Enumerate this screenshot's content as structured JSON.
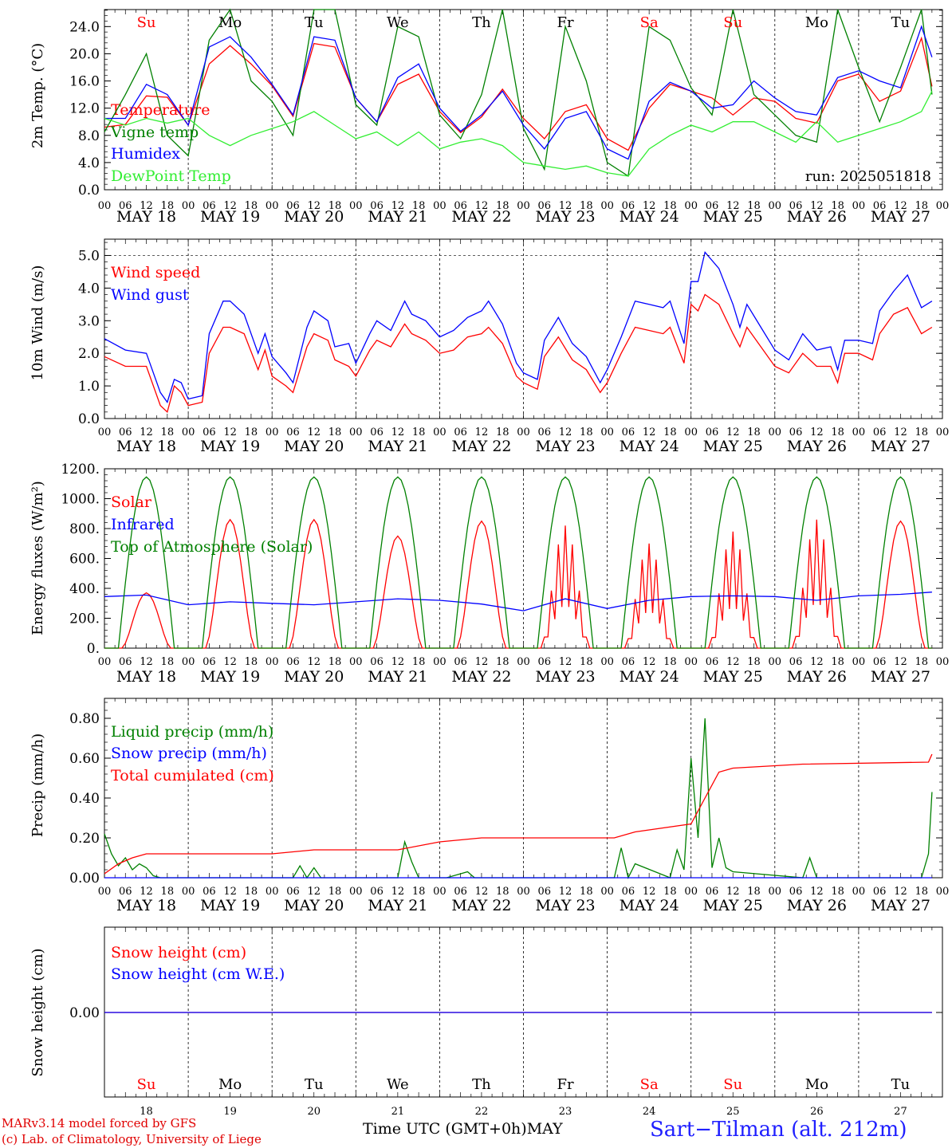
{
  "chart_data": [
    {
      "type": "line",
      "ylabel": "2m Temp. (°C)",
      "ylim": [
        0,
        26.5
      ],
      "yticks": [
        "0.0",
        "4.0",
        "8.0",
        "12.0",
        "16.0",
        "20.0",
        "24.0"
      ],
      "x_unit": "hours since May 18 00 UTC",
      "annotation": "run: 2025051818",
      "series": [
        {
          "name": "Temperature",
          "color": "#ff0000",
          "x": [
            0,
            6,
            12,
            18,
            24,
            30,
            36,
            42,
            48,
            54,
            60,
            66,
            72,
            78,
            84,
            90,
            96,
            102,
            108,
            114,
            120,
            126,
            132,
            138,
            144,
            150,
            156,
            162,
            168,
            174,
            180,
            186,
            192,
            198,
            204,
            210,
            216,
            222,
            228,
            234,
            237
          ],
          "y": [
            9.2,
            9.6,
            13.8,
            13.6,
            9.5,
            18.5,
            21.2,
            18.5,
            15.3,
            10.8,
            21.5,
            21,
            13.5,
            10,
            15.5,
            17,
            11.5,
            8.4,
            10.7,
            14.8,
            10.5,
            7.5,
            11.5,
            12.5,
            7.5,
            5.8,
            12,
            15.5,
            14.5,
            13.5,
            11,
            13.5,
            13,
            10.5,
            9.8,
            16,
            17,
            13,
            14.5,
            22.3,
            15.2
          ]
        },
        {
          "name": "Vigne temp",
          "color": "#008000",
          "x": [
            0,
            6,
            12,
            18,
            24,
            30,
            36,
            42,
            48,
            54,
            60,
            66,
            72,
            78,
            84,
            90,
            96,
            102,
            108,
            114,
            120,
            126,
            132,
            138,
            144,
            150,
            156,
            162,
            168,
            174,
            180,
            186,
            192,
            198,
            204,
            210,
            216,
            222,
            228,
            234,
            237
          ],
          "y": [
            8.5,
            14,
            20,
            8,
            5,
            22,
            26.5,
            16,
            13,
            8,
            26.5,
            26.5,
            12.5,
            9.5,
            24,
            22.5,
            11,
            7.5,
            14,
            26.5,
            9,
            3,
            24,
            16,
            4,
            2,
            24,
            22,
            15,
            11,
            26.5,
            14,
            11,
            8,
            7,
            26.5,
            18,
            10,
            18,
            26.5,
            14
          ]
        },
        {
          "name": "Humidex",
          "color": "#0000ff",
          "x": [
            0,
            6,
            12,
            18,
            24,
            30,
            36,
            42,
            48,
            54,
            60,
            66,
            72,
            78,
            84,
            90,
            96,
            102,
            108,
            114,
            120,
            126,
            132,
            138,
            144,
            150,
            156,
            162,
            168,
            174,
            180,
            186,
            192,
            198,
            204,
            210,
            216,
            222,
            228,
            234,
            237
          ],
          "y": [
            10.5,
            10.5,
            15.5,
            14,
            9.5,
            21,
            22.5,
            19.5,
            15.5,
            11,
            22.5,
            22,
            13.5,
            10,
            16.5,
            18.5,
            12,
            8.6,
            11,
            14.5,
            9.5,
            6,
            10.5,
            11.5,
            6,
            4.5,
            13,
            15.8,
            14.5,
            12,
            12.5,
            16,
            13.5,
            11.5,
            11,
            16.5,
            17.5,
            16,
            15,
            24,
            19.5
          ]
        },
        {
          "name": "DewPoint Temp",
          "color": "#33ee33",
          "x": [
            0,
            6,
            12,
            18,
            24,
            30,
            36,
            42,
            48,
            54,
            60,
            66,
            72,
            78,
            84,
            90,
            96,
            102,
            108,
            114,
            120,
            126,
            132,
            138,
            144,
            150,
            156,
            162,
            168,
            174,
            180,
            186,
            192,
            198,
            204,
            210,
            216,
            222,
            228,
            234,
            237
          ],
          "y": [
            10.5,
            9.5,
            10.5,
            9.8,
            10.5,
            8,
            6.5,
            8,
            9,
            10,
            11.5,
            9.5,
            7.5,
            8.5,
            6.5,
            8.5,
            6,
            7,
            7.5,
            6.5,
            4,
            3.5,
            3,
            3.5,
            2.5,
            2,
            6,
            8,
            9.5,
            8.5,
            10,
            10,
            8.5,
            7,
            10,
            7,
            8,
            9,
            10,
            11.5,
            14.5
          ]
        }
      ]
    },
    {
      "type": "line",
      "ylabel": "10m Wind (m/s)",
      "ylim": [
        0,
        5.5
      ],
      "yticks": [
        "0.0",
        "1.0",
        "2.0",
        "3.0",
        "4.0",
        "5.0"
      ],
      "series": [
        {
          "name": "Wind speed",
          "color": "#ff0000",
          "x": [
            0,
            6,
            12,
            16,
            18,
            20,
            22,
            24,
            28,
            30,
            34,
            36,
            40,
            44,
            46,
            48,
            52,
            54,
            58,
            60,
            64,
            66,
            70,
            72,
            76,
            78,
            82,
            86,
            88,
            92,
            96,
            100,
            104,
            108,
            110,
            114,
            118,
            120,
            124,
            126,
            130,
            134,
            138,
            142,
            144,
            148,
            152,
            156,
            160,
            162,
            166,
            168,
            170,
            172,
            176,
            180,
            182,
            184,
            188,
            192,
            196,
            200,
            204,
            208,
            210,
            212,
            216,
            220,
            222,
            226,
            230,
            234,
            237
          ],
          "y": [
            1.9,
            1.6,
            1.6,
            0.4,
            0.2,
            1,
            0.8,
            0.4,
            0.5,
            2,
            2.8,
            2.8,
            2.6,
            1.5,
            2.1,
            1.3,
            1,
            0.8,
            2.2,
            2.6,
            2.4,
            1.8,
            1.6,
            1.3,
            2.1,
            2.4,
            2.2,
            2.9,
            2.6,
            2.4,
            2,
            2.1,
            2.5,
            2.6,
            2.8,
            2.3,
            1.3,
            1.1,
            0.9,
            1.9,
            2.5,
            1.8,
            1.5,
            0.8,
            1.1,
            2,
            2.8,
            2.7,
            2.6,
            2.8,
            1.7,
            3.5,
            3.3,
            3.8,
            3.5,
            2.6,
            2.2,
            2.8,
            2.2,
            1.6,
            1.4,
            2,
            1.6,
            1.6,
            1.1,
            2,
            2,
            1.8,
            2.6,
            3.2,
            3.4,
            2.6,
            2.8
          ]
        },
        {
          "name": "Wind gust",
          "color": "#0000ff",
          "x": [
            0,
            6,
            12,
            16,
            18,
            20,
            22,
            24,
            28,
            30,
            34,
            36,
            40,
            44,
            46,
            48,
            52,
            54,
            58,
            60,
            64,
            66,
            70,
            72,
            76,
            78,
            82,
            86,
            88,
            92,
            96,
            100,
            104,
            108,
            110,
            114,
            118,
            120,
            124,
            126,
            130,
            134,
            138,
            142,
            144,
            148,
            152,
            156,
            160,
            162,
            166,
            168,
            170,
            172,
            176,
            180,
            182,
            184,
            188,
            192,
            196,
            200,
            204,
            208,
            210,
            212,
            216,
            220,
            222,
            226,
            230,
            234,
            237
          ],
          "y": [
            2.45,
            2.1,
            2,
            0.8,
            0.5,
            1.2,
            1.1,
            0.6,
            0.7,
            2.6,
            3.6,
            3.6,
            3.2,
            2,
            2.6,
            1.9,
            1.4,
            1.1,
            2.8,
            3.3,
            3,
            2.2,
            2.3,
            1.7,
            2.6,
            3,
            2.7,
            3.6,
            3.2,
            3,
            2.5,
            2.7,
            3.1,
            3.3,
            3.6,
            2.9,
            1.7,
            1.4,
            1.2,
            2.4,
            3.1,
            2.3,
            1.9,
            1.1,
            1.5,
            2.5,
            3.6,
            3.5,
            3.4,
            3.6,
            2.3,
            4.2,
            4.2,
            5.1,
            4.6,
            3.5,
            2.8,
            3.5,
            2.8,
            2.1,
            1.8,
            2.6,
            2.1,
            2.2,
            1.5,
            2.4,
            2.4,
            2.3,
            3.3,
            3.9,
            4.4,
            3.4,
            3.6
          ]
        }
      ]
    },
    {
      "type": "line",
      "ylabel": "Energy fluxes (W/m²)",
      "ylim": [
        0,
        1200
      ],
      "yticks": [
        "0.",
        "200.",
        "400.",
        "600.",
        "800.",
        "1000.",
        "1200."
      ],
      "series": [
        {
          "name": "Solar",
          "color": "#ff0000",
          "daily_peaks": [
            370,
            860,
            860,
            750,
            850,
            820,
            700,
            780,
            860,
            850
          ]
        },
        {
          "name": "Infrared",
          "color": "#0000ff",
          "x": [
            0,
            12,
            24,
            36,
            48,
            60,
            72,
            84,
            96,
            108,
            120,
            132,
            144,
            156,
            168,
            180,
            192,
            204,
            216,
            228,
            237
          ],
          "y": [
            345,
            355,
            290,
            310,
            300,
            290,
            310,
            330,
            320,
            295,
            250,
            330,
            265,
            320,
            345,
            350,
            345,
            320,
            350,
            360,
            375
          ]
        },
        {
          "name": "Top of Atmosphere (Solar)",
          "color": "#008000",
          "daily_peak": 1145
        }
      ]
    },
    {
      "type": "line",
      "ylabel": "Precip (mm/h)",
      "ylim": [
        0,
        0.9
      ],
      "yticks": [
        "0.00",
        "0.20",
        "0.40",
        "0.60",
        "0.80"
      ],
      "series": [
        {
          "name": "Liquid precip (mm/h)",
          "color": "#008000",
          "x": [
            0,
            2,
            4,
            6,
            8,
            10,
            12,
            14,
            16,
            20,
            24,
            54,
            56,
            58,
            60,
            62,
            84,
            86,
            88,
            90,
            98,
            102,
            104,
            106,
            146,
            148,
            150,
            152,
            162,
            164,
            166,
            168,
            170,
            172,
            174,
            176,
            178,
            180,
            200,
            202,
            204,
            234,
            236,
            237
          ],
          "y": [
            0.22,
            0.12,
            0.06,
            0.1,
            0.04,
            0.07,
            0.05,
            0.01,
            0,
            0,
            0,
            0,
            0.06,
            0,
            0.05,
            0,
            0,
            0.18,
            0.08,
            0,
            0,
            0.02,
            0.03,
            0,
            0,
            0.15,
            0,
            0.07,
            0,
            0.14,
            0.04,
            0.6,
            0.2,
            0.8,
            0.05,
            0.2,
            0.05,
            0.03,
            0,
            0.1,
            0,
            0,
            0.12,
            0.43
          ]
        },
        {
          "name": "Snow precip (mm/h)",
          "color": "#0000ff",
          "x": [
            0,
            237
          ],
          "y": [
            0,
            0
          ]
        },
        {
          "name": "Total cumulated (cm)",
          "color": "#ff0000",
          "x": [
            0,
            4,
            8,
            12,
            48,
            60,
            84,
            96,
            108,
            146,
            152,
            168,
            172,
            176,
            180,
            200,
            236,
            237
          ],
          "y": [
            0.02,
            0.07,
            0.1,
            0.12,
            0.12,
            0.14,
            0.14,
            0.18,
            0.2,
            0.2,
            0.23,
            0.27,
            0.4,
            0.53,
            0.55,
            0.57,
            0.58,
            0.62
          ]
        }
      ]
    },
    {
      "type": "line",
      "ylabel": "Snow height (cm)",
      "yticks": [
        "0.00"
      ],
      "series": [
        {
          "name": "Snow height (cm)",
          "color": "#ff0000",
          "x": [
            0,
            237
          ],
          "y": [
            0,
            0
          ]
        },
        {
          "name": "Snow height (cm W.E.)",
          "color": "#0000ff",
          "x": [
            0,
            237
          ],
          "y": [
            0,
            0
          ]
        }
      ]
    }
  ],
  "axis": {
    "hour_ticks": [
      "00",
      "06",
      "12",
      "18"
    ],
    "end_tick": "00",
    "dates": [
      "MAY 18",
      "MAY 19",
      "MAY 20",
      "MAY 21",
      "MAY 22",
      "MAY 23",
      "MAY 24",
      "MAY 25",
      "MAY 26",
      "MAY 27"
    ],
    "weekdays": [
      "Su",
      "Mo",
      "Tu",
      "We",
      "Th",
      "Fr",
      "Sa",
      "Su",
      "Mo",
      "Tu"
    ],
    "weekend": [
      true,
      false,
      false,
      false,
      false,
      false,
      true,
      true,
      false,
      false
    ],
    "day_numbers": [
      "18",
      "19",
      "20",
      "21",
      "22",
      "23",
      "24",
      "25",
      "26",
      "27"
    ],
    "x_title": "Time UTC (GMT+0h)",
    "month": "MAY"
  },
  "footer": {
    "credit_line1": "MARv3.14 model forced by GFS",
    "credit_line2": "(c) Lab. of Climatology, University of Liege",
    "station": "Sart−Tilman (alt. 212m)"
  },
  "colors": {
    "red": "#ff0000",
    "green": "#008000",
    "blue": "#0000ff",
    "lightgreen": "#33ee33",
    "station": "#2020ff"
  }
}
